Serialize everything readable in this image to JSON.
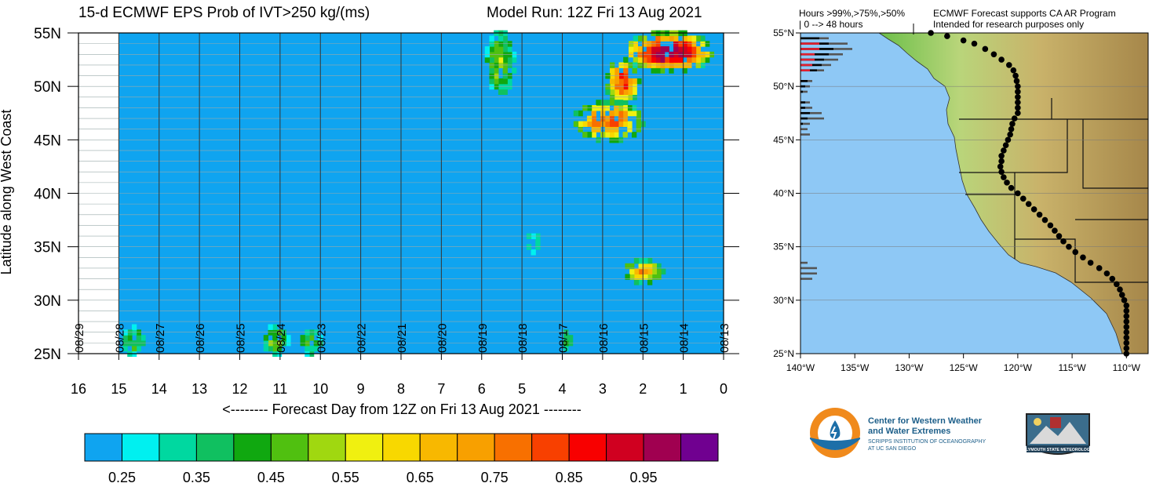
{
  "header": {
    "title": "15-d ECMWF EPS Prob of IVT>250 kg/(ms)",
    "model_run": "Model Run: 12Z Fri 13 Aug 2021"
  },
  "chart_data": [
    {
      "type": "heatmap",
      "title": "15-d ECMWF EPS Prob of IVT>250 kg/(ms)",
      "xlabel": "<-------- Forecast Day from 12Z on Fri 13 Aug 2021 --------",
      "ylabel": "Latitude along West Coast",
      "xlim": [
        16,
        0
      ],
      "ylim": [
        25,
        55
      ],
      "x_ticks": [
        "16",
        "15",
        "14",
        "13",
        "12",
        "11",
        "10",
        "9",
        "8",
        "7",
        "6",
        "5",
        "4",
        "3",
        "2",
        "1",
        "0"
      ],
      "y_ticks": [
        "25N",
        "30N",
        "35N",
        "40N",
        "45N",
        "50N",
        "55N"
      ],
      "date_labels": [
        "08/29",
        "08/28",
        "08/27",
        "08/26",
        "08/25",
        "08/24",
        "08/23",
        "08/22",
        "08/21",
        "08/20",
        "08/19",
        "08/18",
        "08/17",
        "08/16",
        "08/15",
        "08/14",
        "08/13"
      ],
      "data_start_day": 15,
      "background_color": "#0fa4f0",
      "features": [
        {
          "day_range": [
            5.2,
            5.9
          ],
          "lat_range": [
            49.5,
            55
          ],
          "peak": 0.5
        },
        {
          "day_range": [
            0.3,
            2.4
          ],
          "lat_range": [
            51.5,
            55
          ],
          "peak": 1.0
        },
        {
          "day_range": [
            2.1,
            2.9
          ],
          "lat_range": [
            48.5,
            52.5
          ],
          "peak": 0.85
        },
        {
          "day_range": [
            2.0,
            3.7
          ],
          "lat_range": [
            45.0,
            48.5
          ],
          "peak": 0.8
        },
        {
          "day_range": [
            4.5,
            4.9
          ],
          "lat_range": [
            34.5,
            36.2
          ],
          "peak": 0.35
        },
        {
          "day_range": [
            1.5,
            2.5
          ],
          "lat_range": [
            31.7,
            33.7
          ],
          "peak": 0.7
        },
        {
          "day_range": [
            14.4,
            14.9
          ],
          "lat_range": [
            25,
            27.6
          ],
          "peak": 0.45
        },
        {
          "day_range": [
            10.8,
            11.4
          ],
          "lat_range": [
            25,
            27.6
          ],
          "peak": 0.5
        },
        {
          "day_range": [
            10.0,
            10.5
          ],
          "lat_range": [
            25,
            27.3
          ],
          "peak": 0.45
        },
        {
          "day_range": [
            3.8,
            4.0
          ],
          "lat_range": [
            25.5,
            27.0
          ],
          "peak": 0.45
        }
      ]
    },
    {
      "type": "heatmap",
      "title": "ECMWF Forecast supports CA AR Program",
      "xlabel": "",
      "ylabel": "",
      "xlim": [
        -140,
        -108
      ],
      "ylim": [
        25,
        55
      ],
      "x_ticks": [
        "140°W",
        "135°W",
        "130°W",
        "125°W",
        "120°W",
        "115°W",
        "110°W"
      ],
      "y_ticks": [
        "25°N",
        "30°N",
        "35°N",
        "40°N",
        "45°N",
        "50°N",
        "55°N"
      ],
      "legend_text": "Hours >99%,>75%,>50%",
      "range_text": "| 0 --> 48 hours",
      "subtitle": "Intended for research purposes only",
      "hour_bars": [
        {
          "lat": 54.5,
          "hours": [
            0,
            8,
            12
          ]
        },
        {
          "lat": 54.0,
          "hours": [
            8,
            12,
            20
          ]
        },
        {
          "lat": 53.5,
          "hours": [
            8,
            14,
            22
          ]
        },
        {
          "lat": 53.0,
          "hours": [
            6,
            12,
            18
          ]
        },
        {
          "lat": 52.5,
          "hours": [
            6,
            10,
            16
          ]
        },
        {
          "lat": 52.0,
          "hours": [
            5,
            9,
            13
          ]
        },
        {
          "lat": 51.5,
          "hours": [
            4,
            7,
            10
          ]
        },
        {
          "lat": 50.5,
          "hours": [
            0,
            3,
            5
          ]
        },
        {
          "lat": 50.0,
          "hours": [
            0,
            2,
            4
          ]
        },
        {
          "lat": 49.5,
          "hours": [
            0,
            1,
            3
          ]
        },
        {
          "lat": 48.5,
          "hours": [
            0,
            2,
            4
          ]
        },
        {
          "lat": 48.0,
          "hours": [
            0,
            2,
            5
          ]
        },
        {
          "lat": 47.5,
          "hours": [
            0,
            4,
            9
          ]
        },
        {
          "lat": 47.0,
          "hours": [
            0,
            3,
            10
          ]
        },
        {
          "lat": 46.5,
          "hours": [
            0,
            1,
            4
          ]
        },
        {
          "lat": 46.0,
          "hours": [
            0,
            0,
            3
          ]
        },
        {
          "lat": 45.5,
          "hours": [
            0,
            0,
            4
          ]
        },
        {
          "lat": 33.5,
          "hours": [
            0,
            0,
            3
          ]
        },
        {
          "lat": 33.0,
          "hours": [
            0,
            0,
            7
          ]
        },
        {
          "lat": 32.5,
          "hours": [
            0,
            0,
            7
          ]
        },
        {
          "lat": 32.0,
          "hours": [
            0,
            0,
            5
          ]
        }
      ]
    }
  ],
  "colorbar": {
    "colors": [
      "#0fa4f0",
      "#00f0f0",
      "#00d8a0",
      "#10c060",
      "#10a810",
      "#50c010",
      "#a0d810",
      "#f0f010",
      "#f8d800",
      "#f8b800",
      "#f8a000",
      "#f87000",
      "#f84000",
      "#f80000",
      "#d00020",
      "#a00050",
      "#700090"
    ],
    "labels": [
      "0.25",
      "0.35",
      "0.45",
      "0.55",
      "0.65",
      "0.75",
      "0.85",
      "0.95"
    ]
  },
  "logos": {
    "cw3e_line1": "Center for Western Weather",
    "cw3e_line2": "and Water Extremes",
    "cw3e_line3": "SCRIPPS INSTITUTION OF OCEANOGRAPHY",
    "cw3e_line4": "AT UC SAN DIEGO",
    "plymouth": "PLYMOUTH STATE METEOROLOGY"
  }
}
